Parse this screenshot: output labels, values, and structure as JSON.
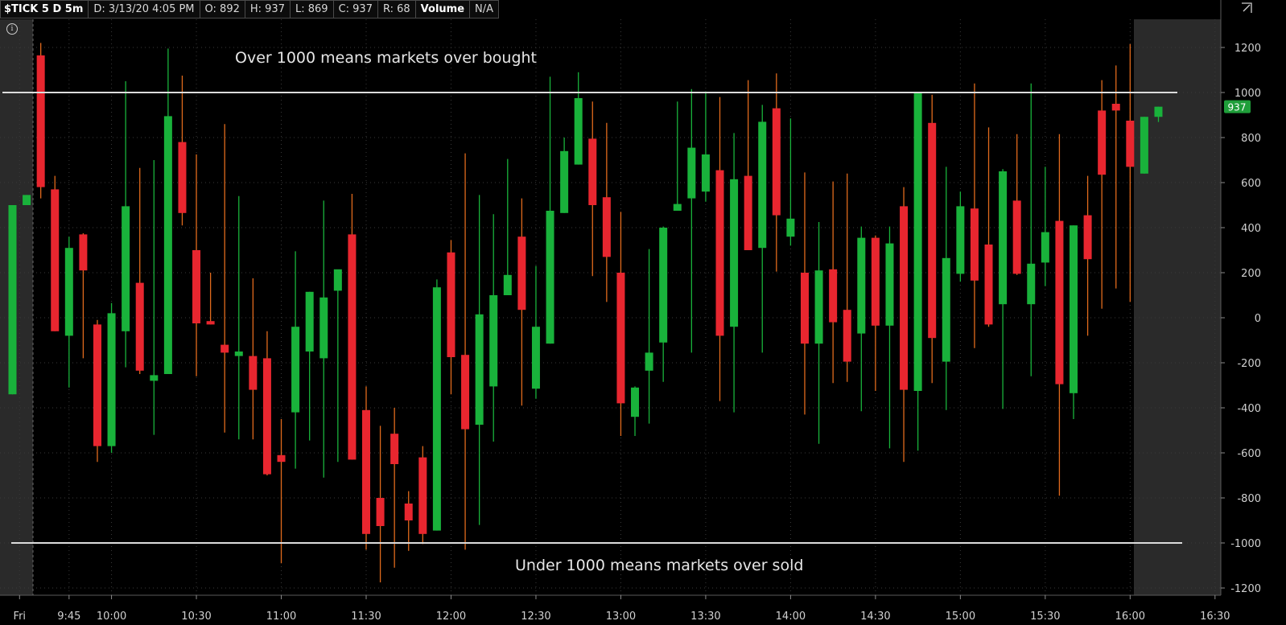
{
  "header": {
    "symbol": "$TICK 5 D 5m",
    "date": "D: 3/13/20 4:05 PM",
    "open": "O: 892",
    "high": "H: 937",
    "low": "L: 869",
    "close": "C: 937",
    "range": "R: 68",
    "volume_label": "Volume",
    "volume_value": "N/A"
  },
  "colors": {
    "up": "#19b23b",
    "down": "#e8262f",
    "up_wick": "#19b23b",
    "down_wick": "#e06a1c",
    "grid": "#3a3a3a",
    "session_shade": "#2a2a2a",
    "annotation_line": "#dcdcdc",
    "annotation_text": "#e6e6e6",
    "axis_text": "#d0d0d0",
    "last_price_badge": "#1f9e3a"
  },
  "icons": {
    "info": "info-circle-icon",
    "corner": "expand-icon"
  },
  "annotations": {
    "upper_text": "Over 1000 means markets over bought",
    "lower_text": "Under 1000 means markets over sold",
    "upper_level": 1000,
    "lower_level": -1000
  },
  "last_price": "937",
  "chart_data": {
    "type": "candlestick",
    "title": "$TICK 5 D 5m",
    "xlabel": "",
    "ylabel": "",
    "ylim": [
      -1270,
      1270
    ],
    "yticks": [
      1200,
      1000,
      800,
      600,
      400,
      200,
      0,
      -200,
      -400,
      -600,
      -800,
      -1000,
      -1200
    ],
    "ytick_labels": [
      "1200",
      "1000",
      "800",
      "600",
      "400",
      "200",
      "0",
      "-200",
      "-400",
      "-600",
      "-800",
      "-1000",
      "-1200"
    ],
    "xtick_labels": [
      "Fri",
      "9:45",
      "10:00",
      "10:30",
      "11:00",
      "11:30",
      "12:00",
      "12:30",
      "13:00",
      "13:30",
      "14:00",
      "14:30",
      "15:00",
      "15:30",
      "16:00",
      "16:30"
    ],
    "xtick_bar_index": [
      0.5,
      4,
      7,
      13,
      19,
      25,
      31,
      37,
      43,
      49,
      55,
      61,
      67,
      73,
      79,
      85
    ],
    "grid": true,
    "candles": [
      {
        "o": -340,
        "h": 500,
        "l": -340,
        "c": 500
      },
      {
        "o": 500,
        "h": 545,
        "l": 500,
        "c": 545
      },
      {
        "o": 1165,
        "h": 1220,
        "l": 530,
        "c": 580
      },
      {
        "o": 570,
        "h": 630,
        "l": -60,
        "c": -60
      },
      {
        "o": -80,
        "h": 360,
        "l": -310,
        "c": 310
      },
      {
        "o": 370,
        "h": 375,
        "l": -180,
        "c": 210
      },
      {
        "o": -30,
        "h": -10,
        "l": -640,
        "c": -570
      },
      {
        "o": -570,
        "h": 65,
        "l": -600,
        "c": 20
      },
      {
        "o": -60,
        "h": 1050,
        "l": -220,
        "c": 495
      },
      {
        "o": 155,
        "h": 665,
        "l": -250,
        "c": -235
      },
      {
        "o": -280,
        "h": 700,
        "l": -520,
        "c": -255
      },
      {
        "o": -250,
        "h": 1195,
        "l": -250,
        "c": 895
      },
      {
        "o": 780,
        "h": 1075,
        "l": 410,
        "c": 465
      },
      {
        "o": 300,
        "h": 725,
        "l": -260,
        "c": -25
      },
      {
        "o": -15,
        "h": 200,
        "l": -30,
        "c": -30
      },
      {
        "o": -120,
        "h": 860,
        "l": -510,
        "c": -155
      },
      {
        "o": -170,
        "h": 540,
        "l": -540,
        "c": -150
      },
      {
        "o": -170,
        "h": 175,
        "l": -540,
        "c": -320
      },
      {
        "o": -180,
        "h": -60,
        "l": -700,
        "c": -695
      },
      {
        "o": -610,
        "h": -450,
        "l": -1090,
        "c": -640
      },
      {
        "o": -420,
        "h": 295,
        "l": -670,
        "c": -40
      },
      {
        "o": -150,
        "h": 115,
        "l": -545,
        "c": 115
      },
      {
        "o": -180,
        "h": 520,
        "l": -710,
        "c": 90
      },
      {
        "o": 120,
        "h": 210,
        "l": -640,
        "c": 215
      },
      {
        "o": 370,
        "h": 550,
        "l": -630,
        "c": -630
      },
      {
        "o": -410,
        "h": -305,
        "l": -1030,
        "c": -960
      },
      {
        "o": -800,
        "h": -480,
        "l": -1175,
        "c": -925
      },
      {
        "o": -515,
        "h": -400,
        "l": -1110,
        "c": -650
      },
      {
        "o": -825,
        "h": -770,
        "l": -1035,
        "c": -900
      },
      {
        "o": -620,
        "h": -570,
        "l": -1005,
        "c": -960
      },
      {
        "o": -945,
        "h": 170,
        "l": -945,
        "c": 135
      },
      {
        "o": 290,
        "h": 345,
        "l": -340,
        "c": -175
      },
      {
        "o": -165,
        "h": 730,
        "l": -1030,
        "c": -495
      },
      {
        "o": -475,
        "h": 545,
        "l": -920,
        "c": 15
      },
      {
        "o": -305,
        "h": 460,
        "l": -550,
        "c": 100
      },
      {
        "o": 100,
        "h": 705,
        "l": 100,
        "c": 190
      },
      {
        "o": 360,
        "h": 530,
        "l": -390,
        "c": 35
      },
      {
        "o": -315,
        "h": 230,
        "l": -360,
        "c": -40
      },
      {
        "o": -115,
        "h": 1070,
        "l": -115,
        "c": 475
      },
      {
        "o": 465,
        "h": 800,
        "l": 465,
        "c": 740
      },
      {
        "o": 680,
        "h": 1090,
        "l": 680,
        "c": 975
      },
      {
        "o": 795,
        "h": 960,
        "l": 185,
        "c": 500
      },
      {
        "o": 535,
        "h": 865,
        "l": 70,
        "c": 270
      },
      {
        "o": 200,
        "h": 470,
        "l": -525,
        "c": -380
      },
      {
        "o": -440,
        "h": -305,
        "l": -525,
        "c": -310
      },
      {
        "o": -235,
        "h": 305,
        "l": -470,
        "c": -155
      },
      {
        "o": -110,
        "h": 405,
        "l": -285,
        "c": 400
      },
      {
        "o": 475,
        "h": 960,
        "l": 475,
        "c": 505
      },
      {
        "o": 530,
        "h": 1015,
        "l": -155,
        "c": 755
      },
      {
        "o": 560,
        "h": 1005,
        "l": 515,
        "c": 725
      },
      {
        "o": 655,
        "h": 980,
        "l": -370,
        "c": -80
      },
      {
        "o": -40,
        "h": 820,
        "l": -420,
        "c": 615
      },
      {
        "o": 630,
        "h": 1055,
        "l": 305,
        "c": 300
      },
      {
        "o": 310,
        "h": 945,
        "l": -155,
        "c": 870
      },
      {
        "o": 930,
        "h": 1085,
        "l": 205,
        "c": 455
      },
      {
        "o": 360,
        "h": 885,
        "l": 320,
        "c": 440
      },
      {
        "o": 200,
        "h": 645,
        "l": -430,
        "c": -115
      },
      {
        "o": -115,
        "h": 425,
        "l": -560,
        "c": 210
      },
      {
        "o": 215,
        "h": 605,
        "l": -290,
        "c": -20
      },
      {
        "o": 35,
        "h": 640,
        "l": -285,
        "c": -195
      },
      {
        "o": -70,
        "h": 405,
        "l": -415,
        "c": 355
      },
      {
        "o": 355,
        "h": 365,
        "l": -325,
        "c": -35
      },
      {
        "o": -35,
        "h": 405,
        "l": -580,
        "c": 330
      },
      {
        "o": 495,
        "h": 580,
        "l": -640,
        "c": -320
      },
      {
        "o": -325,
        "h": 1000,
        "l": -590,
        "c": 1000
      },
      {
        "o": 865,
        "h": 990,
        "l": -290,
        "c": -90
      },
      {
        "o": -195,
        "h": 670,
        "l": -410,
        "c": 265
      },
      {
        "o": 195,
        "h": 560,
        "l": 160,
        "c": 495
      },
      {
        "o": 485,
        "h": 1040,
        "l": -135,
        "c": 165
      },
      {
        "o": 325,
        "h": 845,
        "l": -40,
        "c": -30
      },
      {
        "o": 60,
        "h": 660,
        "l": -405,
        "c": 650
      },
      {
        "o": 520,
        "h": 815,
        "l": 190,
        "c": 195
      },
      {
        "o": 60,
        "h": 1040,
        "l": -260,
        "c": 240
      },
      {
        "o": 245,
        "h": 670,
        "l": 140,
        "c": 380
      },
      {
        "o": 430,
        "h": 815,
        "l": -790,
        "c": -295
      },
      {
        "o": -335,
        "h": 410,
        "l": -450,
        "c": 410
      },
      {
        "o": 455,
        "h": 630,
        "l": -80,
        "c": 260
      },
      {
        "o": 920,
        "h": 1055,
        "l": 40,
        "c": 635
      },
      {
        "o": 950,
        "h": 1120,
        "l": 130,
        "c": 920
      },
      {
        "o": 875,
        "h": 1215,
        "l": 70,
        "c": 670
      },
      {
        "o": 640,
        "h": 892,
        "l": 640,
        "c": 892
      },
      {
        "o": 892,
        "h": 937,
        "l": 869,
        "c": 937
      }
    ]
  }
}
